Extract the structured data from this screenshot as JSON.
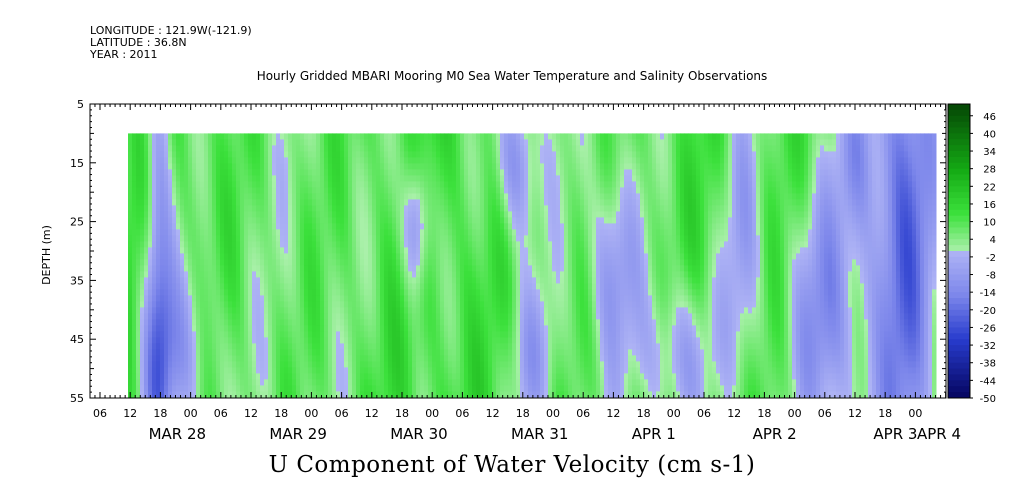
{
  "header": {
    "longitude": "LONGITUDE : 121.9W(-121.9)",
    "latitude": "LATITUDE : 36.8N",
    "year": "YEAR : 2011"
  },
  "chart_data": {
    "type": "heatmap",
    "title": "Hourly Gridded MBARI Mooring M0 Sea Water Temperature and Salinity Observations",
    "xlabel": "U Component of Water Velocity (cm s-1)",
    "ylabel": "DEPTH (m)",
    "ylim": [
      55,
      5
    ],
    "y_ticks": [
      5,
      15,
      25,
      35,
      45,
      55
    ],
    "data_depth_range": [
      10,
      55
    ],
    "x_hour_ticks": [
      "06",
      "12",
      "18",
      "00",
      "06",
      "12",
      "18",
      "00",
      "06",
      "12",
      "18",
      "00",
      "06",
      "12",
      "18",
      "00",
      "06",
      "12",
      "18",
      "00",
      "06",
      "12",
      "18",
      "00",
      "06",
      "12",
      "18",
      "00"
    ],
    "x_day_labels": [
      "MAR 28",
      "MAR 29",
      "MAR 30",
      "MAR 31",
      "APR 1",
      "APR 2",
      "APR 3",
      "APR 4"
    ],
    "colorbar": {
      "min": -50,
      "max": 50,
      "step": 2,
      "labels": [
        "46",
        "40",
        "34",
        "28",
        "22",
        "16",
        "10",
        "4",
        "-2",
        "-8",
        "-14",
        "-20",
        "-26",
        "-32",
        "-38",
        "-44",
        "-50"
      ],
      "negative_color": "#8c96ef",
      "positive_color": "#3be03b"
    },
    "approx_sign_pattern": {
      "negative_regions": [
        "near-surface band around 04 Mar 28 (12-18 h), deepening to 35-55 m",
        "mid-depth lens near 00 Mar 31 (20-35 m)",
        "upper layer near 00 Apr 1 (10-25 m)",
        "deep patches Apr 1 to Apr 3 (40-55 m)",
        "surface to bottom near 00 Apr 4"
      ]
    }
  }
}
